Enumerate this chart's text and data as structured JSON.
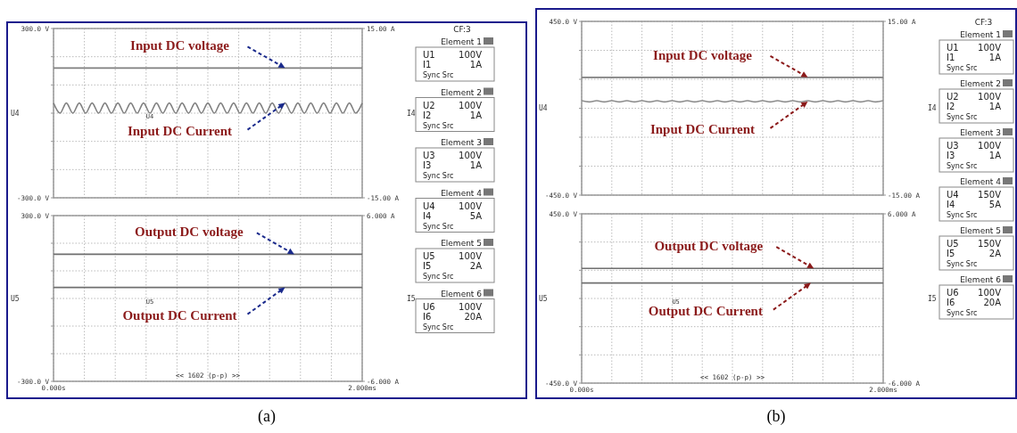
{
  "chart_data": [
    {
      "type": "line",
      "ylabel": "U4",
      "y2label": "I4",
      "xlim": [
        0,
        2
      ],
      "ylim": [
        -300,
        300
      ],
      "y2lim": [
        -15,
        15
      ],
      "grid": true,
      "tick_labels": "y",
      "xticks": [
        {
          "value": 0,
          "label": null
        },
        {
          "value": 0.2,
          "label": null
        },
        {
          "value": 0.4,
          "label": null
        },
        {
          "value": 0.6,
          "label": null
        },
        {
          "value": 0.8,
          "label": null
        },
        {
          "value": 1,
          "label": null
        },
        {
          "value": 1.2,
          "label": null
        },
        {
          "value": 1.4,
          "label": null
        },
        {
          "value": 1.6,
          "label": null
        },
        {
          "value": 1.8,
          "label": null
        },
        {
          "value": 2,
          "label": null
        }
      ],
      "yticks": [
        {
          "value": 300,
          "label": "300.0 V"
        },
        {
          "value": 200,
          "label": null
        },
        {
          "value": 100,
          "label": null
        },
        {
          "value": 0,
          "label": null
        },
        {
          "value": -100,
          "label": null
        },
        {
          "value": -200,
          "label": null
        },
        {
          "value": -300,
          "label": "-300.0 V"
        }
      ],
      "y2ticks": [
        {
          "value": 15,
          "label": "15.00 A"
        },
        {
          "value": -15,
          "label": "-15.00 A"
        }
      ],
      "series": [
        {
          "color": "#7f7f7f",
          "x": [
            0,
            2
          ],
          "values": [
            160,
            160
          ]
        },
        {
          "color": "#808080",
          "axis": "y2",
          "x": [
            0,
            0.042,
            0.083,
            0.125,
            0.167,
            0.208,
            0.25,
            0.292,
            0.333,
            0.375,
            0.417,
            0.458,
            0.5,
            0.542,
            0.583,
            0.625,
            0.667,
            0.708,
            0.75,
            0.792,
            0.833,
            0.875,
            0.917,
            0.958,
            1,
            1.042,
            1.083,
            1.125,
            1.167,
            1.208,
            1.25,
            1.292,
            1.333,
            1.375,
            1.417,
            1.458,
            1.5,
            1.542,
            1.583,
            1.625,
            1.667,
            1.708,
            1.75,
            1.792,
            1.833,
            1.875,
            1.917,
            1.958,
            2
          ],
          "values": [
            1.8,
            0,
            1.8,
            0,
            1.8,
            0,
            1.8,
            0,
            1.8,
            0,
            1.8,
            0,
            1.8,
            0,
            1.8,
            0,
            1.8,
            0,
            1.8,
            0,
            1.8,
            0,
            1.8,
            0,
            1.8,
            0,
            1.8,
            0,
            1.8,
            0,
            1.8,
            0,
            1.8,
            0,
            1.8,
            0,
            1.8,
            0,
            1.8,
            0,
            1.8,
            0,
            1.8,
            0,
            1.8,
            0,
            1.8,
            0,
            1.8
          ]
        }
      ],
      "annotations": [
        "Input DC voltage",
        {
          "text": "Input DC Current",
          "x": 1.5,
          "y": 36
        },
        "U4"
      ]
    },
    {
      "type": "line",
      "title": "(a)",
      "ylabel": "U5",
      "y2label": "I5",
      "xlim": [
        0,
        2
      ],
      "ylim": [
        -300,
        300
      ],
      "y2lim": [
        -6,
        6
      ],
      "grid": true,
      "xticks": [
        {
          "value": 0,
          "label": "0.000s"
        },
        {
          "value": 0.2,
          "label": null
        },
        {
          "value": 0.4,
          "label": null
        },
        {
          "value": 0.6,
          "label": null
        },
        {
          "value": 0.8,
          "label": null
        },
        {
          "value": 1,
          "label": null
        },
        {
          "value": 1.2,
          "label": null
        },
        {
          "value": 1.4,
          "label": null
        },
        {
          "value": 1.6,
          "label": null
        },
        {
          "value": 1.8,
          "label": null
        },
        {
          "value": 2,
          "label": "2.000ms"
        }
      ],
      "yticks": [
        {
          "value": 300,
          "label": "300.0 V"
        },
        {
          "value": 200,
          "label": null
        },
        {
          "value": 100,
          "label": null
        },
        {
          "value": 0,
          "label": null
        },
        {
          "value": -100,
          "label": null
        },
        {
          "value": -200,
          "label": null
        },
        {
          "value": -300,
          "label": "-300.0 V"
        }
      ],
      "y2ticks": [
        {
          "value": 6,
          "label": "6.000 A"
        },
        {
          "value": -6,
          "label": "-6.000 A"
        }
      ],
      "series": [
        {
          "color": "#6f6f6f",
          "x": [
            0,
            2
          ],
          "values": [
            160,
            160
          ]
        },
        {
          "color": "#707070",
          "axis": "y2",
          "x": [
            0,
            2
          ],
          "values": [
            0.8,
            0.8
          ]
        }
      ],
      "annotations": [
        {
          "text": "Output DC voltage",
          "x": 1.56,
          "y": 160
        },
        {
          "text": "Output DC Current",
          "x": 1.5,
          "y": 40
        },
        "U5",
        "<< 1602 (p-p) >>"
      ]
    },
    {
      "type": "other",
      "annotations": [
        "CF:3",
        "Element 1",
        "U1 100V",
        "I1 1A",
        "Sync Src",
        "Element 2",
        "U2 100V",
        "I2 1A",
        "Sync Src",
        "Element 3",
        "U3 100V",
        "I3 1A",
        "Sync Src",
        "Element 4",
        "U4 100V",
        "I4 5A",
        "Sync Src",
        "Element 5",
        "U5 100V",
        "I5 2A",
        "Sync Src",
        "Element 6",
        "U6 100V",
        "I6 20A",
        "Sync Src"
      ]
    },
    {
      "type": "line",
      "ylabel": "U4",
      "y2label": "I4",
      "xlim": [
        0,
        2
      ],
      "ylim": [
        -450,
        450
      ],
      "y2lim": [
        -15,
        15
      ],
      "grid": true,
      "tick_labels": "y",
      "xticks": [
        {
          "value": 0,
          "label": null
        },
        {
          "value": 0.2,
          "label": null
        },
        {
          "value": 0.4,
          "label": null
        },
        {
          "value": 0.6,
          "label": null
        },
        {
          "value": 0.8,
          "label": null
        },
        {
          "value": 1,
          "label": null
        },
        {
          "value": 1.2,
          "label": null
        },
        {
          "value": 1.4,
          "label": null
        },
        {
          "value": 1.6,
          "label": null
        },
        {
          "value": 1.8,
          "label": null
        },
        {
          "value": 2,
          "label": null
        }
      ],
      "yticks": [
        {
          "value": 450,
          "label": "450.0 V"
        },
        {
          "value": 300,
          "label": null
        },
        {
          "value": 150,
          "label": null
        },
        {
          "value": 0,
          "label": null
        },
        {
          "value": -150,
          "label": null
        },
        {
          "value": -300,
          "label": null
        },
        {
          "value": -450,
          "label": "-450.0 V"
        }
      ],
      "y2ticks": [
        {
          "value": 15,
          "label": "15.00 A"
        },
        {
          "value": -15,
          "label": "-15.00 A"
        }
      ],
      "series": [
        {
          "color": "#7f7f7f",
          "x": [
            0,
            2
          ],
          "values": [
            160,
            160
          ]
        },
        {
          "color": "#8c8c8c",
          "axis": "y2",
          "x": [
            0,
            0.05,
            0.1,
            0.15,
            0.2,
            0.25,
            0.3,
            0.35,
            0.4,
            0.45,
            0.5,
            0.55,
            0.6,
            0.65,
            0.7,
            0.75,
            0.8,
            0.85,
            0.9,
            0.95,
            1,
            1.05,
            1.1,
            1.15,
            1.2,
            1.25,
            1.3,
            1.35,
            1.4,
            1.45,
            1.5,
            1.55,
            1.6,
            1.65,
            1.7,
            1.75,
            1.8,
            1.85,
            1.9,
            1.95,
            2
          ],
          "values": [
            1.3,
            1.1,
            1.3,
            1.1,
            1.3,
            1.1,
            1.3,
            1.1,
            1.3,
            1.1,
            1.3,
            1.1,
            1.3,
            1.1,
            1.3,
            1.1,
            1.3,
            1.1,
            1.3,
            1.1,
            1.3,
            1.1,
            1.3,
            1.1,
            1.3,
            1.1,
            1.3,
            1.1,
            1.3,
            1.1,
            1.3,
            1.1,
            1.3,
            1.1,
            1.3,
            1.1,
            1.3,
            1.1,
            1.3,
            1.1,
            1.3
          ]
        }
      ],
      "annotations": [
        "Input DC voltage",
        {
          "text": "Input DC Current",
          "x": 1.5,
          "y": 35
        }
      ]
    },
    {
      "type": "line",
      "title": "(b)",
      "ylabel": "U5",
      "y2label": "I5",
      "xlim": [
        0,
        2
      ],
      "ylim": [
        -450,
        450
      ],
      "y2lim": [
        -6,
        6
      ],
      "grid": true,
      "xticks": [
        {
          "value": 0,
          "label": "0.000s"
        },
        {
          "value": 0.2,
          "label": null
        },
        {
          "value": 0.4,
          "label": null
        },
        {
          "value": 0.6,
          "label": null
        },
        {
          "value": 0.8,
          "label": null
        },
        {
          "value": 1,
          "label": null
        },
        {
          "value": 1.2,
          "label": null
        },
        {
          "value": 1.4,
          "label": null
        },
        {
          "value": 1.6,
          "label": null
        },
        {
          "value": 1.8,
          "label": null
        },
        {
          "value": 2,
          "label": "2.000ms"
        }
      ],
      "yticks": [
        {
          "value": 450,
          "label": "450.0 V"
        },
        {
          "value": 300,
          "label": null
        },
        {
          "value": 150,
          "label": null
        },
        {
          "value": 0,
          "label": null
        },
        {
          "value": -150,
          "label": null
        },
        {
          "value": -300,
          "label": null
        },
        {
          "value": -450,
          "label": "-450.0 V"
        }
      ],
      "y2ticks": [
        {
          "value": 6,
          "label": "6.000 A"
        },
        {
          "value": -6,
          "label": "-6.000 A"
        }
      ],
      "series": [
        {
          "color": "#6f6f6f",
          "x": [
            0,
            2
          ],
          "values": [
            160,
            160
          ]
        },
        {
          "color": "#707070",
          "axis": "y2",
          "x": [
            0,
            2
          ],
          "values": [
            1.1,
            1.1
          ]
        }
      ],
      "annotations": [
        {
          "text": "Output DC voltage",
          "x": 1.54,
          "y": 160
        },
        {
          "text": "Output DC Current",
          "x": 1.52,
          "y": 82.5
        },
        "U5",
        "<< 1602 (p-p) >>"
      ]
    },
    {
      "type": "other",
      "annotations": [
        "CF:3",
        "Element 1",
        "U1 100V",
        "I1 1A",
        "Sync Src",
        "Element 2",
        "U2 100V",
        "I2 1A",
        "Sync Src",
        "Element 3",
        "U3 100V",
        "I3 1A",
        "Sync Src",
        "Element 4",
        "U4 150V",
        "I4 5A",
        "Sync Src",
        "Element 5",
        "U5 150V",
        "I5 2A",
        "Sync Src",
        "Element 6",
        "U6 100V",
        "I6 20A",
        "Sync Src"
      ]
    }
  ]
}
